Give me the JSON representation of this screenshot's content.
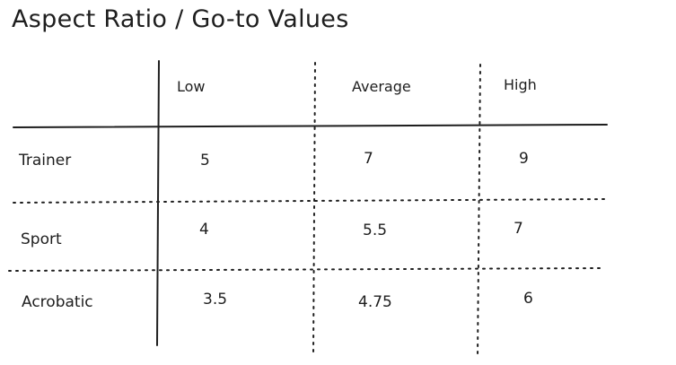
{
  "title": "Aspect Ratio / Go-to Values",
  "columns": [
    "Low",
    "Average",
    "High"
  ],
  "rows": [
    {
      "label": "Trainer",
      "values": [
        "5",
        "7",
        "9"
      ]
    },
    {
      "label": "Sport",
      "values": [
        "4",
        "5.5",
        "7"
      ]
    },
    {
      "label": "Acrobatic",
      "values": [
        "3.5",
        "4.75",
        "6"
      ]
    }
  ],
  "colors": {
    "ink": "#1e1e1e",
    "background": "#ffffff"
  }
}
